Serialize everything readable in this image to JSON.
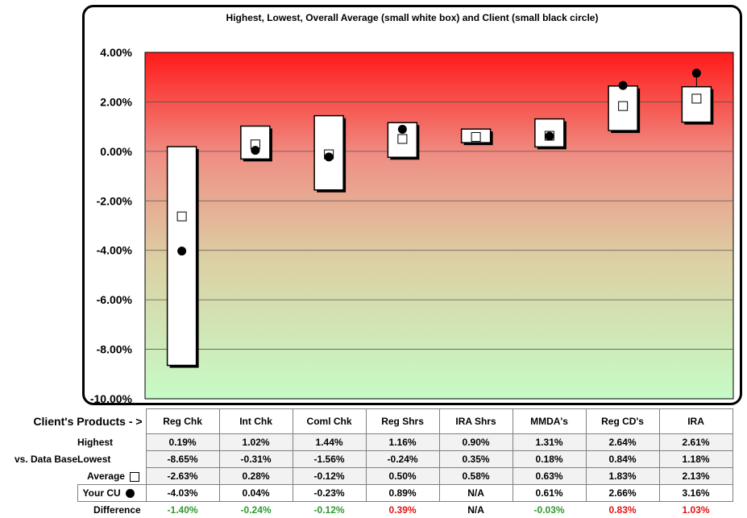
{
  "chart_data": {
    "type": "box",
    "title": "Highest, Lowest, Overall Average (small white box) and Client (small black circle)",
    "categories": [
      "Reg Chk",
      "Int Chk",
      "Coml Chk",
      "Reg Shrs",
      "IRA Shrs",
      "MMDA's",
      "Reg CD's",
      "IRA"
    ],
    "ylim": [
      -10,
      4
    ],
    "yticks": [
      "4.00%",
      "2.00%",
      "0.00%",
      "-2.00%",
      "-4.00%",
      "-6.00%",
      "-8.00%",
      "-10.00%"
    ],
    "ytick_values": [
      4,
      2,
      0,
      -2,
      -4,
      -6,
      -8,
      -10
    ],
    "series": [
      {
        "name": "Highest",
        "values": [
          0.19,
          1.02,
          1.44,
          1.16,
          0.9,
          1.31,
          2.64,
          2.61
        ]
      },
      {
        "name": "Lowest",
        "values": [
          -8.65,
          -0.31,
          -1.56,
          -0.24,
          0.35,
          0.18,
          0.84,
          1.18
        ]
      },
      {
        "name": "Average",
        "values": [
          -2.63,
          0.28,
          -0.12,
          0.5,
          0.58,
          0.63,
          1.83,
          2.13
        ]
      },
      {
        "name": "Your CU",
        "values": [
          -4.03,
          0.04,
          -0.23,
          0.89,
          null,
          0.61,
          2.66,
          3.16
        ]
      }
    ],
    "colors": {
      "top": "#ff0000",
      "bottom": "#c6fbc6",
      "box": "#ffffff",
      "dot": "#000000"
    },
    "grid": true
  },
  "table": {
    "header_label": "Client's Products - >",
    "vs_label": "vs. Data Base",
    "row_labels": {
      "highest": "Highest",
      "lowest": "Lowest",
      "average": "Average",
      "client": "Your CU",
      "difference": "Difference"
    },
    "columns": [
      "Reg Chk",
      "Int Chk",
      "Coml Chk",
      "Reg Shrs",
      "IRA Shrs",
      "MMDA's",
      "Reg CD's",
      "IRA"
    ],
    "highest": [
      "0.19%",
      "1.02%",
      "1.44%",
      "1.16%",
      "0.90%",
      "1.31%",
      "2.64%",
      "2.61%"
    ],
    "lowest": [
      "-8.65%",
      "-0.31%",
      "-1.56%",
      "-0.24%",
      "0.35%",
      "0.18%",
      "0.84%",
      "1.18%"
    ],
    "average": [
      "-2.63%",
      "0.28%",
      "-0.12%",
      "0.50%",
      "0.58%",
      "0.63%",
      "1.83%",
      "2.13%"
    ],
    "client": [
      "-4.03%",
      "0.04%",
      "-0.23%",
      "0.89%",
      "N/A",
      "0.61%",
      "2.66%",
      "3.16%"
    ],
    "difference": [
      "-1.40%",
      "-0.24%",
      "-0.12%",
      "0.39%",
      "N/A",
      "-0.03%",
      "0.83%",
      "1.03%"
    ],
    "difference_colors": [
      "green",
      "green",
      "green",
      "red",
      "black",
      "green",
      "red",
      "red"
    ]
  }
}
